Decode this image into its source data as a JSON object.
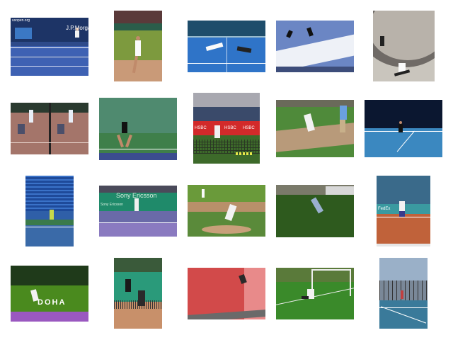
{
  "gallery": {
    "thumbnails": [
      {
        "id": "t1",
        "scene": "tennis-hardcourt-blue",
        "texts": [
          "usopen.org",
          "J.P.Morga"
        ]
      },
      {
        "id": "t2",
        "scene": "tennis-clay-serve",
        "texts": []
      },
      {
        "id": "t3",
        "scene": "tennis-blue-court-lunge",
        "texts": []
      },
      {
        "id": "t4",
        "scene": "skiing-jump",
        "texts": []
      },
      {
        "id": "t5",
        "scene": "skateboard-bowl",
        "texts": []
      },
      {
        "id": "t6",
        "scene": "tennis-doubles-pair",
        "texts": []
      },
      {
        "id": "t7",
        "scene": "tennis-green-court",
        "texts": []
      },
      {
        "id": "t8",
        "scene": "tennis-hsbc-net",
        "texts": [
          "HSBC",
          "HSBC",
          "HSBC"
        ]
      },
      {
        "id": "t9",
        "scene": "baseball-batter",
        "texts": []
      },
      {
        "id": "t10",
        "scene": "tennis-night-court",
        "texts": []
      },
      {
        "id": "t11",
        "scene": "tennis-stadium-blue",
        "texts": []
      },
      {
        "id": "t12",
        "scene": "tennis-sony-ericsson",
        "texts": [
          "Sony Ericsson",
          "Sony Ericsson"
        ]
      },
      {
        "id": "t13",
        "scene": "baseball-pitcher",
        "texts": []
      },
      {
        "id": "t14",
        "scene": "frisbee-dive",
        "texts": []
      },
      {
        "id": "t15",
        "scene": "tennis-clay-fedex",
        "texts": [
          "FedEx"
        ]
      },
      {
        "id": "t16",
        "scene": "tennis-doha",
        "texts": [
          "DOHA"
        ]
      },
      {
        "id": "t17",
        "scene": "tennis-doubles-clay",
        "texts": []
      },
      {
        "id": "t18",
        "scene": "skateboard-red-ramp",
        "texts": []
      },
      {
        "id": "t19",
        "scene": "soccer-goalkeeper",
        "texts": []
      },
      {
        "id": "t20",
        "scene": "tennis-fence-court",
        "texts": []
      }
    ]
  }
}
